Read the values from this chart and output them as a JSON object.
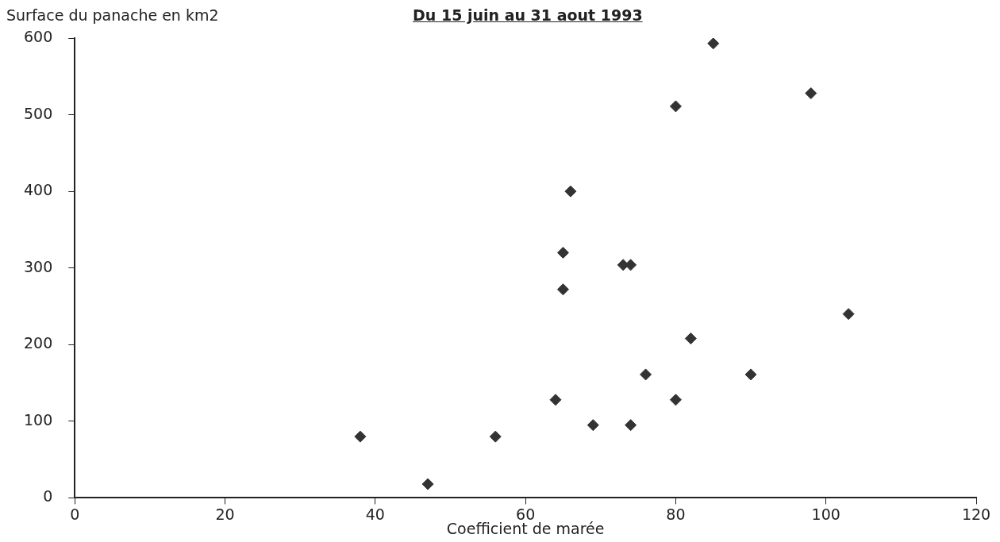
{
  "chart_data": {
    "type": "scatter",
    "title": "Du 15 juin au 31 aout 1993",
    "xlabel": "Coefficient de marée",
    "ylabel": "Surface du panache en km2",
    "x": [
      38,
      47,
      56,
      64,
      65,
      65,
      66,
      69,
      73,
      74,
      74,
      76,
      80,
      80,
      82,
      85,
      90,
      98,
      103
    ],
    "series": [
      {
        "color": "#333333",
        "values": [
          80,
          18,
          80,
          128,
          272,
          320,
          400,
          95,
          304,
          304,
          95,
          161,
          128,
          511,
          208,
          593,
          161,
          528,
          240
        ]
      }
    ],
    "xlim": [
      0,
      120
    ],
    "xticks": [
      0,
      20,
      40,
      60,
      80,
      100,
      120
    ],
    "ylim": [
      0,
      600
    ],
    "yticks": [
      0,
      100,
      200,
      300,
      400,
      500,
      600
    ],
    "grid": false,
    "legend": false,
    "marker": "diamond"
  }
}
